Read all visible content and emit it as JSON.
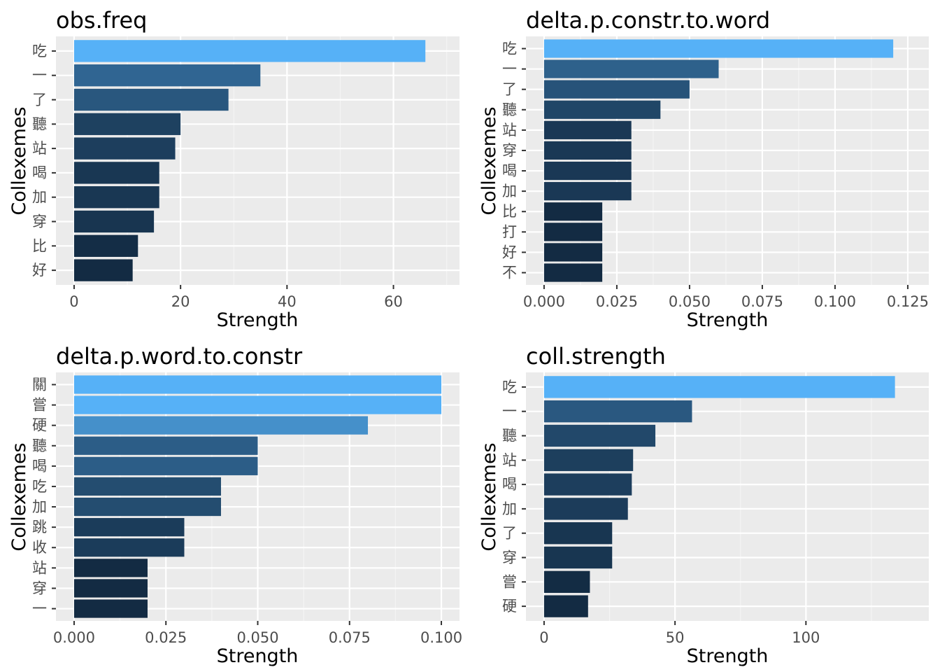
{
  "chart_data": [
    {
      "type": "bar",
      "orientation": "horizontal",
      "title": "obs.freq",
      "xlabel": "Strength",
      "ylabel": "Collexemes",
      "categories": [
        "吃",
        "一",
        "了",
        "聽",
        "站",
        "喝",
        "加",
        "穿",
        "比",
        "好"
      ],
      "values": [
        66,
        35,
        29,
        20,
        19,
        16,
        16,
        15,
        12,
        11
      ],
      "xlim": [
        0,
        69
      ],
      "xticks": [
        0,
        20,
        40,
        60
      ],
      "xtick_labels": [
        "0",
        "20",
        "40",
        "60"
      ],
      "grid": true,
      "fill": "continuous gradient, dark navy (low) to light blue (high)"
    },
    {
      "type": "bar",
      "orientation": "horizontal",
      "title": "delta.p.constr.to.word",
      "xlabel": "Strength",
      "ylabel": "Collexemes",
      "categories": [
        "吃",
        "一",
        "了",
        "聽",
        "站",
        "穿",
        "喝",
        "加",
        "比",
        "打",
        "好",
        "不"
      ],
      "values": [
        0.12,
        0.06,
        0.05,
        0.04,
        0.03,
        0.03,
        0.03,
        0.03,
        0.02,
        0.02,
        0.02,
        0.02
      ],
      "xlim": [
        0,
        0.126
      ],
      "xticks": [
        0,
        0.025,
        0.05,
        0.075,
        0.1,
        0.125
      ],
      "xtick_labels": [
        "0.000",
        "0.025",
        "0.050",
        "0.075",
        "0.100",
        "0.125"
      ],
      "grid": true,
      "fill": "continuous gradient, dark navy (low) to light blue (high)"
    },
    {
      "type": "bar",
      "orientation": "horizontal",
      "title": "delta.p.word.to.constr",
      "xlabel": "Strength",
      "ylabel": "Collexemes",
      "categories": [
        "關",
        "嘗",
        "硬",
        "聽",
        "喝",
        "吃",
        "加",
        "跳",
        "收",
        "站",
        "穿",
        "一"
      ],
      "values": [
        0.1,
        0.1,
        0.08,
        0.05,
        0.05,
        0.04,
        0.04,
        0.03,
        0.03,
        0.02,
        0.02,
        0.02
      ],
      "xlim": [
        0,
        0.1
      ],
      "xticks": [
        0,
        0.025,
        0.05,
        0.075,
        0.1
      ],
      "xtick_labels": [
        "0.000",
        "0.025",
        "0.050",
        "0.075",
        "0.100"
      ],
      "grid": true,
      "fill": "continuous gradient, dark navy (low) to light blue (high)"
    },
    {
      "type": "bar",
      "orientation": "horizontal",
      "title": "coll.strength",
      "xlabel": "Strength",
      "ylabel": "Collexemes",
      "categories": [
        "吃",
        "一",
        "聽",
        "站",
        "喝",
        "加",
        "了",
        "穿",
        "嘗",
        "硬"
      ],
      "values": [
        134,
        56.5,
        42.5,
        34,
        33.5,
        32,
        26,
        26,
        17.5,
        16.8
      ],
      "xlim": [
        0,
        140
      ],
      "xticks": [
        0,
        50,
        100
      ],
      "xtick_labels": [
        "0",
        "50",
        "100"
      ],
      "grid": true,
      "fill": "continuous gradient, dark navy (low) to light blue (high)"
    }
  ],
  "colors": {
    "panel_background": "#EBEBEB",
    "grid_major": "#FFFFFF",
    "grid_minor": "#F5F5F5",
    "bar_low": "#132B43",
    "bar_high": "#56B1F7",
    "text": "#000000",
    "tick_label": "#4D4D4D"
  }
}
